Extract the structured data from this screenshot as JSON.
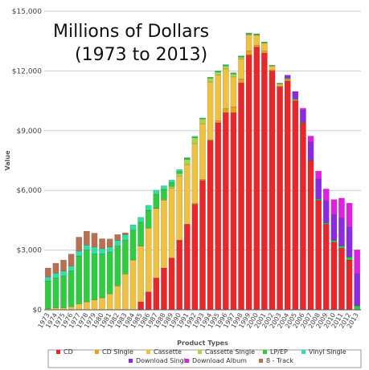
{
  "chart_data": {
    "type": "bar",
    "stacked": true,
    "title": [
      "Millions of Dollars",
      "(1973 to 2013)"
    ],
    "xlabel": "Product Types",
    "ylabel": "Value",
    "ylim": [
      0,
      15000
    ],
    "yticks": [
      "$0",
      "$3,000",
      "$6,000",
      "$9,000",
      "$12,000",
      "$15,000"
    ],
    "grid": true,
    "legend_position": "bottom",
    "categories": [
      "1973",
      "1974",
      "1975",
      "1976",
      "1977",
      "1978",
      "1979",
      "1980",
      "1981",
      "1982",
      "1983",
      "1984",
      "1985",
      "1986",
      "1987",
      "1988",
      "1989",
      "1990",
      "1991",
      "1992",
      "1993",
      "1994",
      "1995",
      "1996",
      "1997",
      "1998",
      "1999",
      "2000",
      "2001",
      "2002",
      "2003",
      "2004",
      "2005",
      "2006",
      "2007",
      "2008",
      "2009",
      "2010",
      "2011",
      "2012",
      "2013"
    ],
    "series": [
      {
        "name": "CD",
        "color": "#e8272c",
        "values": [
          0,
          0,
          0,
          0,
          0,
          0,
          0,
          0,
          0,
          0,
          0,
          0,
          400,
          900,
          1600,
          2100,
          2600,
          3500,
          4300,
          5300,
          6500,
          8500,
          9400,
          9900,
          9900,
          11400,
          12800,
          13200,
          12900,
          12000,
          11200,
          11500,
          10500,
          9400,
          7500,
          5500,
          4300,
          3400,
          3100,
          2500,
          0
        ]
      },
      {
        "name": "CD Single",
        "color": "#e8a020",
        "values": [
          0,
          0,
          0,
          0,
          0,
          0,
          0,
          0,
          0,
          0,
          0,
          0,
          0,
          0,
          0,
          0,
          0,
          0,
          0,
          50,
          50,
          50,
          100,
          200,
          300,
          200,
          200,
          100,
          100,
          50,
          50,
          50,
          50,
          0,
          0,
          0,
          0,
          0,
          0,
          0,
          0
        ]
      },
      {
        "name": "Cassette",
        "color": "#f0c040",
        "values": [
          50,
          100,
          100,
          150,
          300,
          400,
          500,
          600,
          800,
          1200,
          1800,
          2500,
          2800,
          3200,
          3500,
          3400,
          3500,
          3200,
          3000,
          3000,
          2800,
          2900,
          2300,
          2000,
          1500,
          1000,
          800,
          500,
          400,
          200,
          100,
          50,
          20,
          0,
          0,
          0,
          0,
          0,
          0,
          0,
          0
        ]
      },
      {
        "name": "Cassette Single",
        "color": "#a8d848",
        "values": [
          0,
          0,
          0,
          0,
          0,
          0,
          0,
          0,
          0,
          0,
          0,
          0,
          0,
          0,
          10,
          50,
          100,
          150,
          250,
          300,
          250,
          200,
          150,
          150,
          150,
          100,
          50,
          10,
          0,
          0,
          0,
          0,
          0,
          0,
          0,
          0,
          0,
          0,
          0,
          0,
          0
        ]
      },
      {
        "name": "LP/EP",
        "color": "#2ecc40",
        "values": [
          1400,
          1500,
          1600,
          1800,
          2400,
          2600,
          2300,
          2200,
          2100,
          2000,
          1700,
          1500,
          1200,
          900,
          700,
          500,
          200,
          100,
          50,
          20,
          10,
          10,
          20,
          30,
          30,
          30,
          30,
          30,
          30,
          20,
          20,
          20,
          20,
          20,
          20,
          60,
          60,
          80,
          100,
          150,
          200
        ]
      },
      {
        "name": "Vinyl Single",
        "color": "#30e0a0",
        "values": [
          200,
          240,
          250,
          250,
          250,
          250,
          350,
          270,
          260,
          280,
          270,
          270,
          250,
          250,
          200,
          180,
          120,
          100,
          50,
          50,
          30,
          30,
          40,
          40,
          30,
          30,
          30,
          30,
          30,
          20,
          20,
          20,
          20,
          10,
          10,
          10,
          10,
          10,
          10,
          10,
          10
        ]
      },
      {
        "name": "Download Single",
        "color": "#8a2be2",
        "values": [
          0,
          0,
          0,
          0,
          0,
          0,
          0,
          0,
          0,
          0,
          0,
          0,
          0,
          0,
          0,
          0,
          0,
          0,
          0,
          0,
          0,
          0,
          0,
          0,
          0,
          0,
          0,
          0,
          0,
          0,
          0,
          150,
          350,
          600,
          900,
          1000,
          1100,
          1300,
          1400,
          1500,
          1600
        ]
      },
      {
        "name": "Download Album",
        "color": "#e020e0",
        "values": [
          0,
          0,
          0,
          0,
          0,
          0,
          0,
          0,
          0,
          0,
          0,
          0,
          0,
          0,
          0,
          0,
          0,
          0,
          0,
          0,
          0,
          0,
          0,
          0,
          0,
          0,
          0,
          0,
          0,
          0,
          0,
          0,
          10,
          100,
          300,
          400,
          600,
          750,
          1000,
          1200,
          1200
        ]
      },
      {
        "name": "8 - Track",
        "color": "#b87050",
        "values": [
          450,
          500,
          550,
          600,
          700,
          700,
          700,
          500,
          400,
          300,
          100,
          0,
          0,
          0,
          0,
          0,
          0,
          0,
          0,
          0,
          0,
          0,
          0,
          0,
          0,
          0,
          0,
          0,
          0,
          0,
          0,
          0,
          0,
          0,
          0,
          0,
          0,
          0,
          0,
          0,
          0
        ]
      }
    ]
  }
}
